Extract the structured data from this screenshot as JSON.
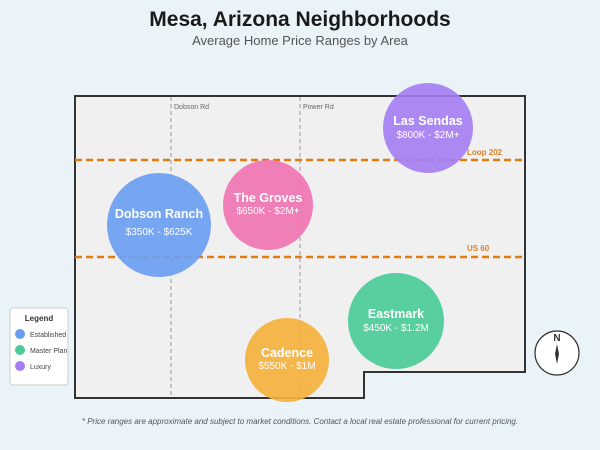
{
  "title": "Mesa, Arizona Neighborhoods",
  "subtitle": "Average Home Price Ranges by Area",
  "roads": [
    {
      "name": "Dobson Rd",
      "type": "street"
    },
    {
      "name": "Power Rd",
      "type": "street"
    },
    {
      "name": "Loop 202",
      "type": "highway"
    },
    {
      "name": "US 60",
      "type": "highway"
    }
  ],
  "highway_color": "#e07b10",
  "neighborhoods": [
    {
      "name": "Dobson Ranch",
      "price": "$350K - $625K",
      "category": "Established",
      "color": "#6b9ef2"
    },
    {
      "name": "The Groves",
      "price": "$650K - $2M+",
      "category": "",
      "color": "#f075b2"
    },
    {
      "name": "Las Sendas",
      "price": "$800K - $2M+",
      "category": "Luxury",
      "color": "#a47df2"
    },
    {
      "name": "Eastmark",
      "price": "$450K - $1.2M",
      "category": "Master Plan",
      "color": "#4ccb98"
    },
    {
      "name": "Cadence",
      "price": "$550K - $1M",
      "category": "",
      "color": "#f5b13e"
    }
  ],
  "legend": {
    "title": "Legend",
    "items": [
      {
        "label": "Established",
        "color": "#6b9ef2"
      },
      {
        "label": "Master Plan",
        "color": "#4ccb98"
      },
      {
        "label": "Luxury",
        "color": "#a47df2"
      }
    ]
  },
  "compass": {
    "label": "N",
    "icon": "compass-icon"
  },
  "footnote": "* Price ranges are approximate and subject to market conditions. Contact a local real estate professional for current pricing."
}
